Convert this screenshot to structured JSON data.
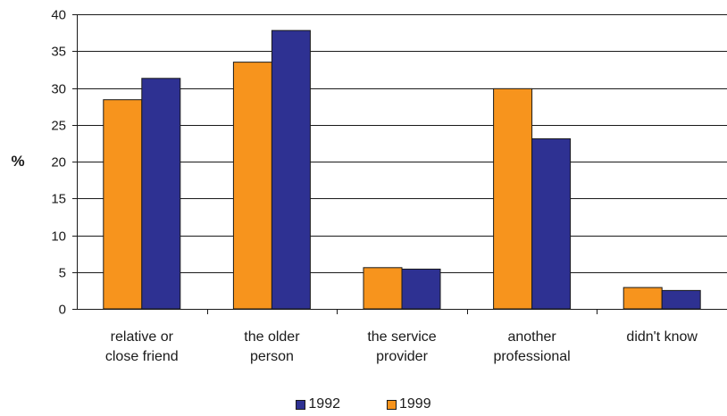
{
  "chart_data": {
    "type": "bar",
    "categories": [
      [
        "relative or",
        "close friend"
      ],
      [
        "the older",
        "person"
      ],
      [
        "the service",
        "provider"
      ],
      [
        "another",
        "professional"
      ],
      [
        "didn't know"
      ]
    ],
    "series": [
      {
        "name": "1999",
        "color": "#F7941D",
        "values": [
          28.4,
          33.5,
          5.6,
          29.9,
          2.9
        ]
      },
      {
        "name": "1992",
        "color": "#2E3192",
        "values": [
          31.3,
          37.8,
          5.4,
          23.1,
          2.5
        ]
      }
    ],
    "legend_order": [
      "1992",
      "1999"
    ],
    "ylabel": "%",
    "xlabel": "",
    "title": "",
    "ylim": [
      0,
      40
    ],
    "yticks": [
      0,
      5,
      10,
      15,
      20,
      25,
      30,
      35,
      40
    ],
    "grid": true,
    "legend_position": "bottom"
  }
}
